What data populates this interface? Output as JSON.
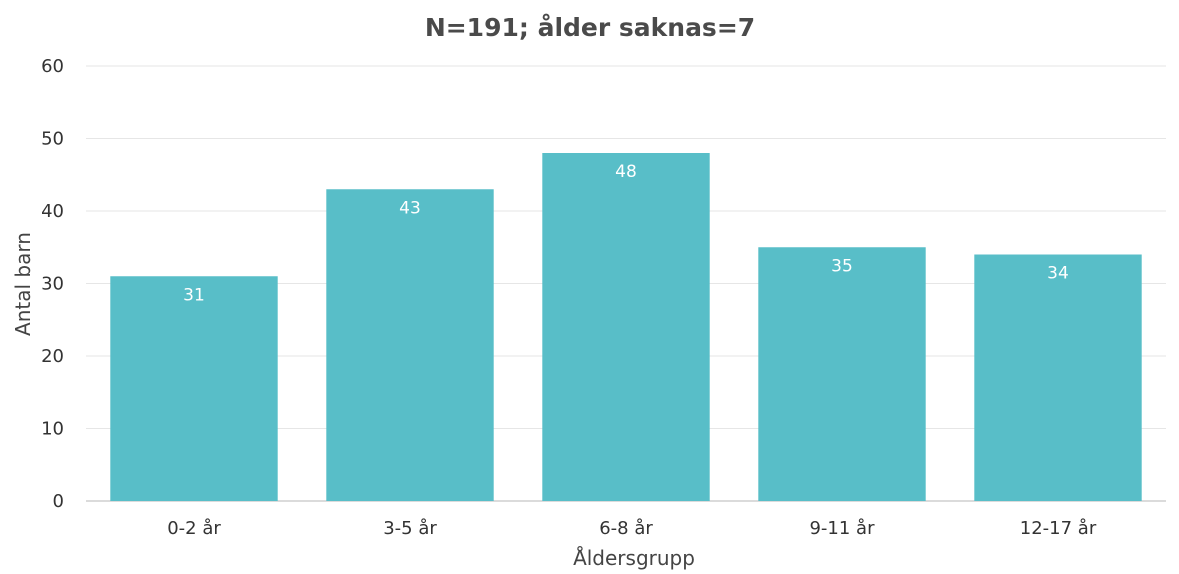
{
  "chart_data": {
    "type": "bar",
    "title": "N=191; ålder saknas=7",
    "xlabel": "Åldersgrupp",
    "ylabel": "Antal barn",
    "categories": [
      "0-2 år",
      "3-5 år",
      "6-8 år",
      "9-11 år",
      "12-17 år"
    ],
    "values": [
      31,
      43,
      48,
      35,
      34
    ],
    "ylim": [
      0,
      60
    ],
    "yticks": [
      0,
      10,
      20,
      30,
      40,
      50,
      60
    ],
    "grid": true,
    "legend": "none",
    "colors": {
      "bar": "#58bec8",
      "bar_label": "#ffffff"
    }
  }
}
